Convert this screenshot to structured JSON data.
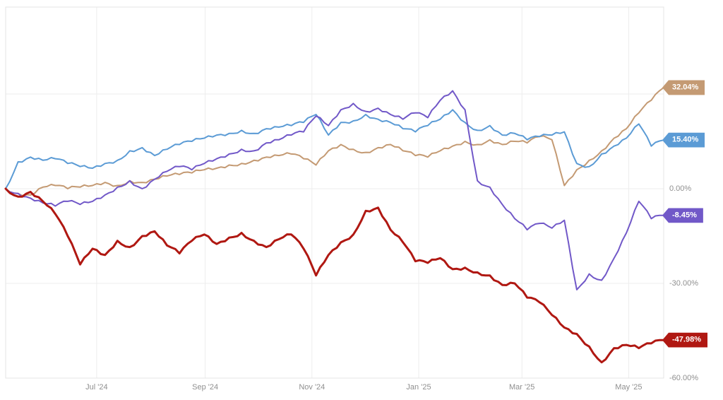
{
  "chart_data": {
    "type": "line",
    "title": "",
    "xlabel": "",
    "ylabel": "",
    "grid": true,
    "legend_position": "none",
    "ylim": [
      -60,
      57.5
    ],
    "y_unit": "%",
    "x_domain_days": [
      0,
      376
    ],
    "x_ticks": [
      {
        "day": 52,
        "label": "Jul '24"
      },
      {
        "day": 114,
        "label": "Sep '24"
      },
      {
        "day": 175,
        "label": "Nov '24"
      },
      {
        "day": 236,
        "label": "Jan '25"
      },
      {
        "day": 295,
        "label": "Mar '25"
      },
      {
        "day": 356,
        "label": "May '25"
      }
    ],
    "y_ticks": [
      {
        "value": 0,
        "label": "0.00%"
      },
      {
        "value": -30,
        "label": "-30.00%"
      },
      {
        "value": -60,
        "label": "-60.00%"
      }
    ],
    "y_gridlines": [
      30,
      0,
      -30,
      -60
    ],
    "series": [
      {
        "name": "tan",
        "color": "#C49A73",
        "line_width": 2,
        "end_label": "32.04%",
        "final_value": 32.04,
        "values": [
          0,
          -1.5,
          -2,
          0.5,
          1,
          0,
          0.5,
          1,
          2,
          1,
          2.5,
          2,
          3,
          4,
          4.5,
          5,
          6,
          6.5,
          7.5,
          8,
          9,
          10,
          10.5,
          11,
          9.5,
          7.5,
          12,
          14,
          12.5,
          11.5,
          13,
          14,
          12,
          10.5,
          10,
          12,
          13.5,
          15,
          14,
          15.5,
          14,
          15,
          14.5,
          16.5,
          15.5,
          1,
          6,
          9,
          12,
          16,
          19,
          24,
          28,
          32.04
        ]
      },
      {
        "name": "blue",
        "color": "#5B9BD5",
        "line_width": 2,
        "end_label": "15.40%",
        "final_value": 15.4,
        "values": [
          0,
          8.5,
          10,
          9,
          9.5,
          8,
          7,
          6.5,
          8,
          9,
          12,
          13,
          10.5,
          12.5,
          14,
          15,
          16,
          17,
          17.5,
          18.5,
          17.5,
          19,
          19.5,
          20,
          21,
          23.5,
          17,
          21,
          21.5,
          23.5,
          22,
          21,
          19,
          18,
          20,
          22,
          25,
          21,
          18.5,
          20,
          17,
          17.5,
          15.5,
          16.5,
          17,
          18,
          8,
          7,
          11,
          13.5,
          16,
          20.5,
          13.5,
          15.4
        ]
      },
      {
        "name": "purple",
        "color": "#7158C8",
        "line_width": 2,
        "end_label": "-8.45%",
        "final_value": -8.45,
        "values": [
          0,
          -1.5,
          -3,
          -4.5,
          -5.5,
          -4,
          -5,
          -4,
          -2,
          0.5,
          2.5,
          0,
          3,
          5.5,
          7,
          6,
          8,
          9.5,
          11,
          12.5,
          12,
          14.5,
          15.5,
          17,
          18,
          23,
          20,
          25,
          27,
          24.5,
          25.5,
          23.5,
          22,
          24,
          22.5,
          28,
          31,
          25,
          2.5,
          0.5,
          -5,
          -9.5,
          -13,
          -11,
          -12.5,
          -10,
          -32,
          -27,
          -29,
          -22,
          -14,
          -4,
          -9.5,
          -8.45
        ]
      },
      {
        "name": "red",
        "color": "#B01812",
        "line_width": 3,
        "end_label": "-47.98%",
        "final_value": -47.98,
        "values": [
          0,
          -2.5,
          -1,
          -4,
          -8,
          -15,
          -24,
          -19,
          -21,
          -16.5,
          -18.5,
          -15,
          -13.5,
          -18,
          -20.5,
          -16.5,
          -14.5,
          -17.5,
          -15.5,
          -14,
          -16.5,
          -18.5,
          -16,
          -14.5,
          -19,
          -27.5,
          -21,
          -17,
          -14.5,
          -7,
          -6,
          -13,
          -17,
          -23,
          -23.5,
          -22,
          -25.5,
          -25,
          -26.5,
          -27.5,
          -30.5,
          -30,
          -34.5,
          -36,
          -40,
          -44,
          -46,
          -50,
          -55,
          -50.5,
          -49.5,
          -50.5,
          -49,
          -47.98
        ]
      }
    ]
  }
}
